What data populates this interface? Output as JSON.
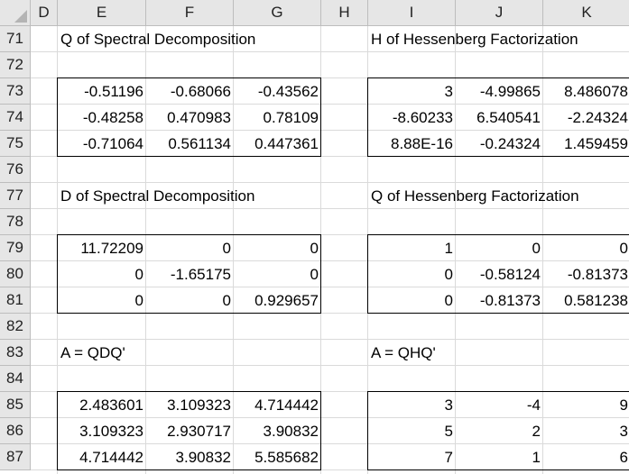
{
  "columns": [
    "D",
    "E",
    "F",
    "G",
    "H",
    "I",
    "J",
    "K"
  ],
  "rows": [
    "71",
    "72",
    "73",
    "74",
    "75",
    "76",
    "77",
    "78",
    "79",
    "80",
    "81",
    "82",
    "83",
    "84",
    "85",
    "86",
    "87"
  ],
  "labels": {
    "q_spectral": "Q of Spectral Decomposition",
    "h_hessenberg": "H of Hessenberg Factorization",
    "d_spectral": "D of Spectral Decomposition",
    "q_hessenberg": "Q of Hessenberg Factorization",
    "a_qdq": "A = QDQ'",
    "a_qhq": "A = QHQ'"
  },
  "matrices": {
    "q_spectral": [
      [
        "-0.51196",
        "-0.68066",
        "-0.43562"
      ],
      [
        "-0.48258",
        "0.470983",
        "0.78109"
      ],
      [
        "-0.71064",
        "0.561134",
        "0.447361"
      ]
    ],
    "h_hessenberg": [
      [
        "3",
        "-4.99865",
        "8.486078"
      ],
      [
        "-8.60233",
        "6.540541",
        "-2.24324"
      ],
      [
        "8.88E-16",
        "-0.24324",
        "1.459459"
      ]
    ],
    "d_spectral": [
      [
        "11.72209",
        "0",
        "0"
      ],
      [
        "0",
        "-1.65175",
        "0"
      ],
      [
        "0",
        "0",
        "0.929657"
      ]
    ],
    "q_hessenberg": [
      [
        "1",
        "0",
        "0"
      ],
      [
        "0",
        "-0.58124",
        "-0.81373"
      ],
      [
        "0",
        "-0.81373",
        "0.581238"
      ]
    ],
    "a_qdq": [
      [
        "2.483601",
        "3.109323",
        "4.714442"
      ],
      [
        "3.109323",
        "2.930717",
        "3.90832"
      ],
      [
        "4.714442",
        "3.90832",
        "5.585682"
      ]
    ],
    "a_qhq": [
      [
        "3",
        "-4",
        "9"
      ],
      [
        "5",
        "2",
        "3"
      ],
      [
        "7",
        "1",
        "6"
      ]
    ]
  }
}
